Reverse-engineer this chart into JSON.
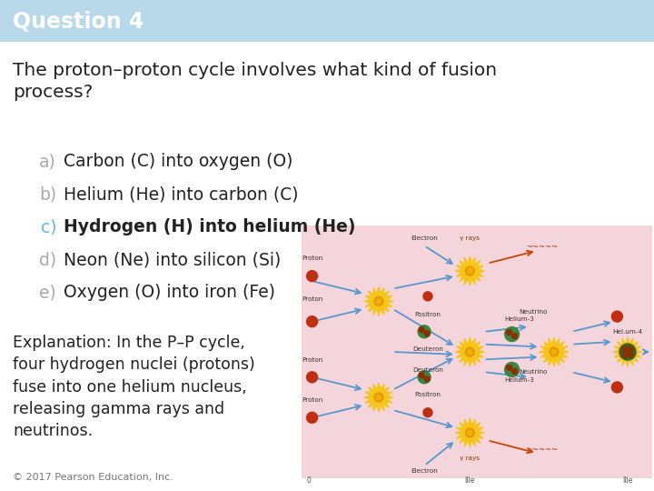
{
  "title": "Question 4",
  "title_bg_color": "#b8d9ea",
  "title_text_color": "#ffffff",
  "bg_color": "#ffffff",
  "question_text": "The proton–proton cycle involves what kind of fusion\nprocess?",
  "question_fontsize": 14.5,
  "choices": [
    {
      "label": "a)",
      "text": "Carbon (C) into oxygen (O)",
      "bold": false
    },
    {
      "label": "b)",
      "text": "Helium (He) into carbon (C)",
      "bold": false
    },
    {
      "label": "c)",
      "text": "Hydrogen (H) into helium (He)",
      "bold": true
    },
    {
      "label": "d)",
      "text": "Neon (Ne) into silicon (Si)",
      "bold": false
    },
    {
      "label": "e)",
      "text": "Oxygen (O) into iron (Fe)",
      "bold": false
    }
  ],
  "explanation_text": "Explanation: In the P–P cycle,\nfour hydrogen nuclei (protons)\nfuse into one helium nucleus,\nreleasing gamma rays and\nneutrinos.",
  "explanation_fontsize": 12.5,
  "copyright_text": "© 2017 Pearson Education, Inc.",
  "copyright_fontsize": 8,
  "diagram_bg_color": "#f5d5dc",
  "choice_fontsize": 13.5,
  "label_color_inactive": "#aaaaaa",
  "label_color_active": "#5bbde0",
  "text_color": "#222222",
  "title_fontsize": 17
}
